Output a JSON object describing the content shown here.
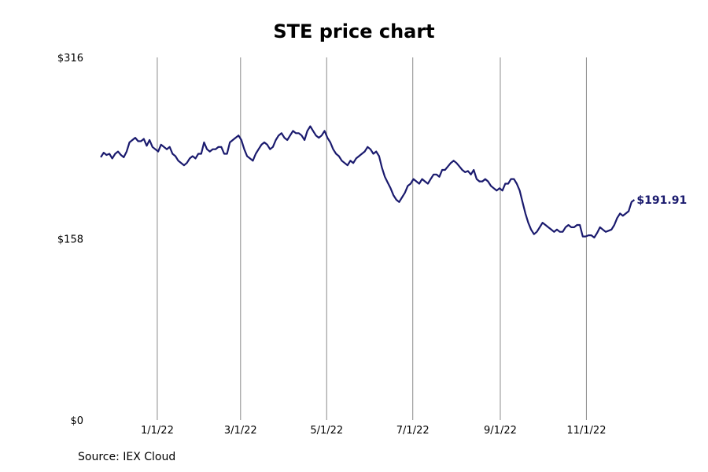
{
  "chart_data": {
    "type": "line",
    "title": "STE price chart",
    "source": "Source: IEX Cloud",
    "xlabel": "",
    "ylabel": "",
    "x_start": "2021-11-22",
    "x_end": "2022-12-05",
    "xlim": [
      "2021-11-13",
      "2023-01-15"
    ],
    "ylim": [
      0,
      316
    ],
    "y_ticks": [
      {
        "value": 0,
        "label": "$0"
      },
      {
        "value": 158,
        "label": "$158"
      },
      {
        "value": 316,
        "label": "$316"
      }
    ],
    "x_ticks": [
      {
        "date": "2022-01-01",
        "label": "1/1/22"
      },
      {
        "date": "2022-03-01",
        "label": "3/1/22"
      },
      {
        "date": "2022-05-01",
        "label": "5/1/22"
      },
      {
        "date": "2022-07-01",
        "label": "7/1/22"
      },
      {
        "date": "2022-09-01",
        "label": "9/1/22"
      },
      {
        "date": "2022-11-01",
        "label": "11/1/22"
      }
    ],
    "grid": "vertical",
    "line_color": "#1a1a6e",
    "last_value_label": "$191.91",
    "series": [
      {
        "values": [
          229,
          233,
          231,
          232,
          228,
          232,
          234,
          231,
          229,
          234,
          242,
          244,
          246,
          243,
          243,
          245,
          239,
          244,
          238,
          236,
          234,
          240,
          238,
          236,
          238,
          232,
          230,
          226,
          224,
          222,
          224,
          228,
          230,
          228,
          232,
          232,
          242,
          236,
          234,
          236,
          236,
          238,
          238,
          232,
          232,
          242,
          244,
          246,
          248,
          244,
          236,
          230,
          228,
          226,
          232,
          236,
          240,
          242,
          240,
          236,
          238,
          244,
          248,
          250,
          246,
          244,
          248,
          252,
          250,
          250,
          248,
          244,
          252,
          256,
          252,
          248,
          246,
          248,
          252,
          246,
          242,
          236,
          232,
          230,
          226,
          224,
          222,
          226,
          224,
          228,
          230,
          232,
          234,
          238,
          236,
          232,
          234,
          230,
          220,
          212,
          207,
          202,
          196,
          192,
          190,
          194,
          198,
          204,
          206,
          210,
          208,
          206,
          210,
          208,
          206,
          210,
          214,
          214,
          212,
          218,
          218,
          221,
          224,
          226,
          224,
          221,
          218,
          216,
          217,
          214,
          218,
          210,
          208,
          208,
          210,
          208,
          204,
          202,
          200,
          202,
          200,
          206,
          206,
          210,
          210,
          206,
          200,
          190,
          180,
          172,
          166,
          162,
          164,
          168,
          172,
          170,
          168,
          166,
          164,
          166,
          164,
          164,
          168,
          170,
          168,
          168,
          170,
          170,
          160,
          160,
          161,
          161,
          159,
          163,
          168,
          166,
          164,
          165,
          166,
          170,
          176,
          180,
          178,
          180,
          182,
          190,
          191.91
        ]
      }
    ]
  }
}
